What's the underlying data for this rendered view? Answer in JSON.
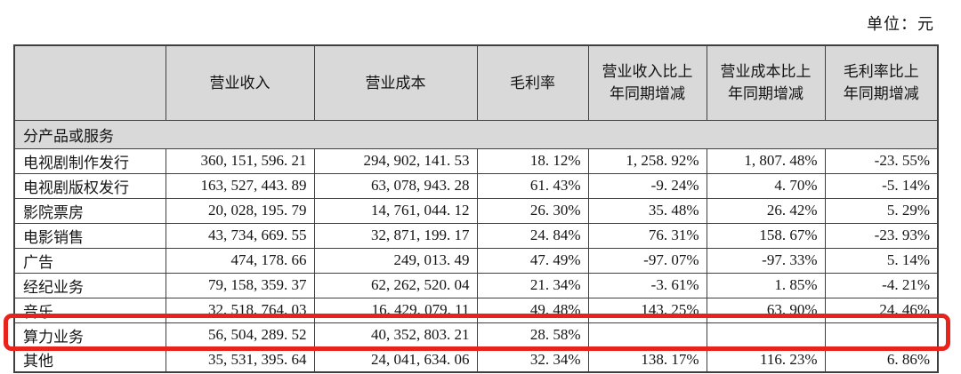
{
  "page": {
    "unit_label": "单位：元"
  },
  "table": {
    "columns": [
      "",
      "营业收入",
      "营业成本",
      "毛利率",
      "营业收入比上年同期增减",
      "营业成本比上年同期增减",
      "毛利率比上年同期增减"
    ],
    "section_label": "分产品或服务",
    "rows": [
      {
        "label": "电视剧制作发行",
        "revenue": "360, 151, 596. 21",
        "cost": "294, 902, 141. 53",
        "margin": "18. 12%",
        "revenue_yoy": "1, 258. 92%",
        "cost_yoy": "1, 807. 48%",
        "margin_yoy": "-23. 55%",
        "highlight": false
      },
      {
        "label": "电视剧版权发行",
        "revenue": "163, 527, 443. 89",
        "cost": "63, 078, 943. 28",
        "margin": "61. 43%",
        "revenue_yoy": "-9. 24%",
        "cost_yoy": "4. 70%",
        "margin_yoy": "-5. 14%",
        "highlight": false
      },
      {
        "label": "影院票房",
        "revenue": "20, 028, 195. 79",
        "cost": "14, 761, 044. 12",
        "margin": "26. 30%",
        "revenue_yoy": "35. 48%",
        "cost_yoy": "26. 42%",
        "margin_yoy": "5. 29%",
        "highlight": false
      },
      {
        "label": "电影销售",
        "revenue": "43, 734, 669. 55",
        "cost": "32, 871, 199. 17",
        "margin": "24. 84%",
        "revenue_yoy": "76. 31%",
        "cost_yoy": "158. 67%",
        "margin_yoy": "-23. 93%",
        "highlight": false
      },
      {
        "label": "广告",
        "revenue": "474, 178. 66",
        "cost": "249, 013. 49",
        "margin": "47. 49%",
        "revenue_yoy": "-97. 07%",
        "cost_yoy": "-97. 33%",
        "margin_yoy": "5. 14%",
        "highlight": false
      },
      {
        "label": "经纪业务",
        "revenue": "79, 158, 359. 37",
        "cost": "62, 262, 520. 04",
        "margin": "21. 34%",
        "revenue_yoy": "-3. 61%",
        "cost_yoy": "1. 85%",
        "margin_yoy": "-4. 21%",
        "highlight": false
      },
      {
        "label": "音乐",
        "revenue": "32, 518, 764. 03",
        "cost": "16, 429, 079. 11",
        "margin": "49. 48%",
        "revenue_yoy": "143. 25%",
        "cost_yoy": "63. 90%",
        "margin_yoy": "24. 46%",
        "highlight": false
      },
      {
        "label": "算力业务",
        "revenue": "56, 504, 289. 52",
        "cost": "40, 352, 803. 21",
        "margin": "28. 58%",
        "revenue_yoy": "",
        "cost_yoy": "",
        "margin_yoy": "",
        "highlight": true
      },
      {
        "label": "其他",
        "revenue": "35, 531, 395. 64",
        "cost": "24, 041, 634. 06",
        "margin": "32. 34%",
        "revenue_yoy": "138. 17%",
        "cost_yoy": "116. 23%",
        "margin_yoy": "6. 86%",
        "highlight": false
      }
    ]
  },
  "colors": {
    "header_bg": "#d9d9d9",
    "border": "#3f3f3f",
    "text": "#141414",
    "highlight_box": "#e8231c",
    "page_bg": "#ffffff"
  }
}
